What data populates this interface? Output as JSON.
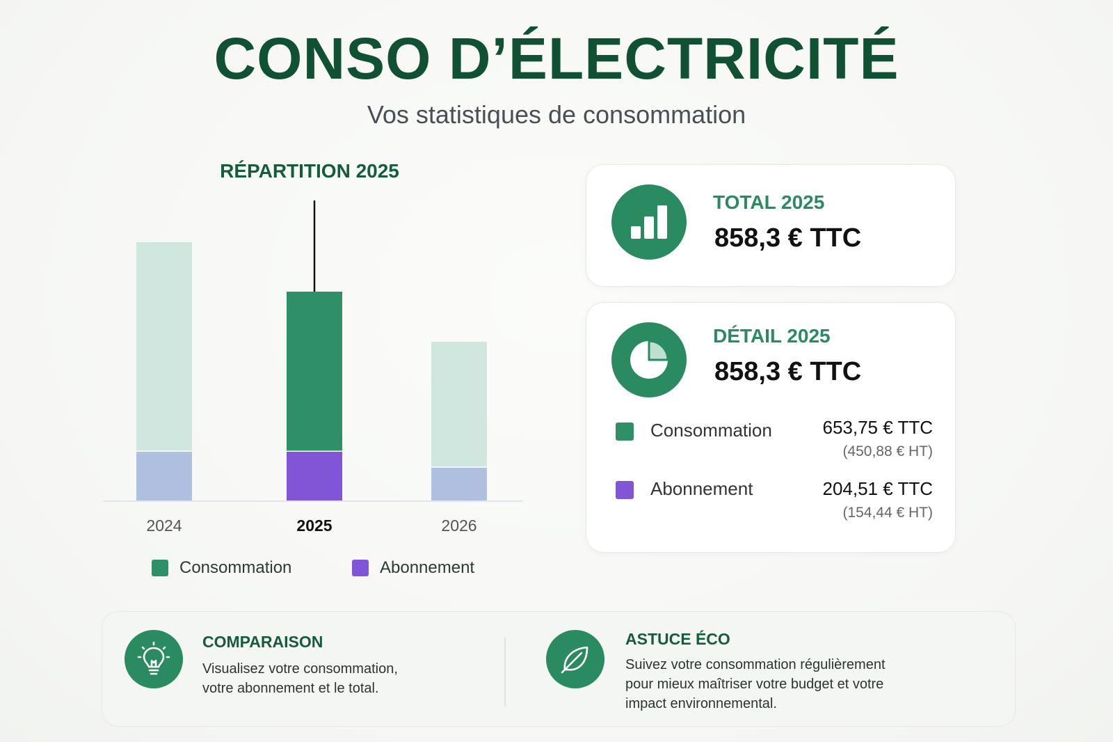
{
  "header": {
    "title": "CONSO D’ÉLECTRICITÉ",
    "subtitle": "Vos statistiques de consommation"
  },
  "chart_data": {
    "type": "bar",
    "stacked": true,
    "title": "RÉPARTITION 2025",
    "categories": [
      "2024",
      "2025",
      "2026"
    ],
    "highlighted_category": "2025",
    "series": [
      {
        "name": "Abonnement",
        "values": [
          204.51,
          204.51,
          139.0
        ],
        "colors": [
          "#aebfdf",
          "#8155d6",
          "#aebfdf"
        ]
      },
      {
        "name": "Consommation",
        "values": [
          857.0,
          653.75,
          513.0
        ],
        "colors": [
          "#cfe7df",
          "#2f8f68",
          "#cfe7df"
        ]
      }
    ],
    "ylim": [
      0,
      1150
    ],
    "grid": false,
    "legend": [
      {
        "name": "Consommation",
        "color": "#2f8f68"
      },
      {
        "name": "Abonnement",
        "color": "#8155d6"
      }
    ],
    "legend_position": "bottom"
  },
  "total_card": {
    "icon": "bar-chart-icon",
    "label": "TOTAL 2025",
    "value": "858,3 € TTC"
  },
  "detail_card": {
    "icon": "pie-chart-icon",
    "label": "DÉTAIL 2025",
    "value": "858,3 € TTC",
    "rows": [
      {
        "name": "Consommation",
        "ttc": "653,75 € TTC",
        "ht": "(450,88 € HT)",
        "color": "#2f8f68"
      },
      {
        "name": "Abonnement",
        "ttc": "204,51 € TTC",
        "ht": "(154,44 € HT)",
        "color": "#8155d6"
      }
    ]
  },
  "bottom": {
    "comparison": {
      "icon": "lightbulb-icon",
      "heading": "COMPARAISON",
      "line1": "Visualisez votre consommation,",
      "line2": "votre abonnement et le total."
    },
    "tip": {
      "icon": "leaf-icon",
      "heading": "ASTUCE ÉCO",
      "line1": "Suivez votre consommation régulièrement",
      "line2": "pour mieux maîtriser votre budget et votre",
      "line3": "impact environnemental."
    }
  },
  "colors": {
    "brand_dark": "#0f5132",
    "brand": "#2a8a60",
    "consommation": "#2f8f68",
    "abonnement": "#8155d6"
  }
}
